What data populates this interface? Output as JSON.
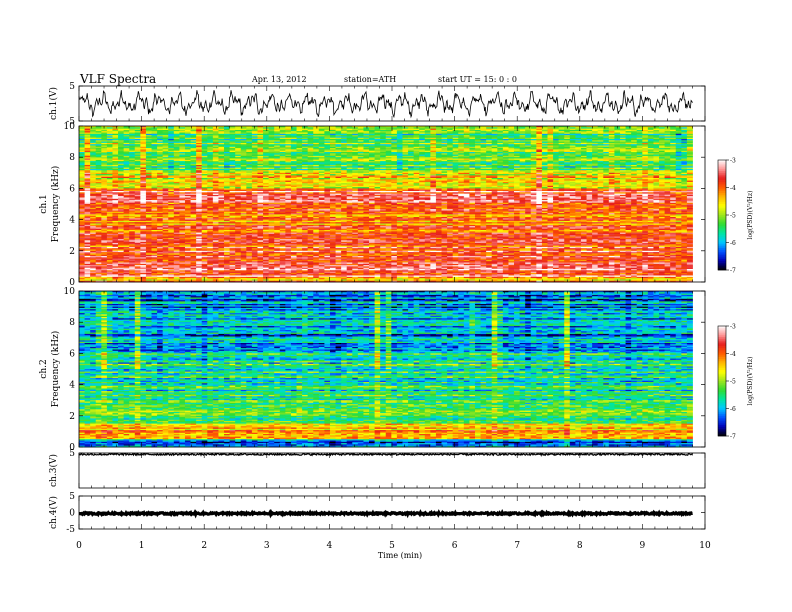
{
  "header": {
    "title": "VLF  Spectra",
    "date": "Apr. 13, 2012",
    "station": "station=ATH",
    "start": "start  UT  =    15: 0  : 0"
  },
  "colorbar": {
    "label": "log(PSD)(V²/Hz)",
    "ticks": [
      "-3",
      "-4",
      "-5",
      "-6",
      "-7"
    ],
    "colors": [
      "#000000",
      "#0000b4",
      "#0050ff",
      "#00c8ff",
      "#00e6a0",
      "#32dc32",
      "#a0e61e",
      "#ffff00",
      "#ffb400",
      "#ff5a00",
      "#e61e1e",
      "#ff9696",
      "#ffffff"
    ]
  },
  "chart_data": [
    {
      "type": "line",
      "ylabel": "ch.1(V)",
      "ylim": [
        -5,
        5
      ],
      "yticks": [
        "5",
        "-5"
      ],
      "x_range_min": [
        0,
        9.8
      ],
      "description_values": "noisy waveform roughly between -3 V and +3 V"
    },
    {
      "type": "heatmap",
      "ylabel_channel": "ch.1",
      "ylabel": "Frequency  (kHz)",
      "ylim": [
        0,
        10
      ],
      "yticks": [
        "0",
        "2",
        "4",
        "6",
        "8",
        "10"
      ],
      "x_range_min": [
        0,
        9.8
      ],
      "zlim": [
        -7,
        -3
      ],
      "bands_khz": [
        {
          "from": 0.0,
          "to": 0.3,
          "log_psd": -4.2
        },
        {
          "from": 0.3,
          "to": 1.0,
          "log_psd": -3.5
        },
        {
          "from": 1.0,
          "to": 3.0,
          "log_psd": -3.8
        },
        {
          "from": 3.0,
          "to": 5.0,
          "log_psd": -4.0
        },
        {
          "from": 5.0,
          "to": 6.0,
          "log_psd": -3.6
        },
        {
          "from": 6.0,
          "to": 7.0,
          "log_psd": -4.6
        },
        {
          "from": 7.0,
          "to": 10.0,
          "log_psd": -5.3
        }
      ]
    },
    {
      "type": "heatmap",
      "ylabel_channel": "ch.2",
      "ylabel": "Frequency  (kHz)",
      "ylim": [
        0,
        10
      ],
      "yticks": [
        "0",
        "2",
        "4",
        "6",
        "8",
        "10"
      ],
      "x_range_min": [
        0,
        9.8
      ],
      "zlim": [
        -7,
        -3
      ],
      "bands_khz": [
        {
          "from": 0.0,
          "to": 0.5,
          "log_psd": -6.2
        },
        {
          "from": 0.5,
          "to": 1.5,
          "log_psd": -4.4
        },
        {
          "from": 1.5,
          "to": 3.0,
          "log_psd": -5.3
        },
        {
          "from": 3.0,
          "to": 6.0,
          "log_psd": -5.6
        },
        {
          "from": 6.0,
          "to": 10.0,
          "log_psd": -6.1
        }
      ]
    },
    {
      "type": "line",
      "ylabel": "ch.3(V)",
      "ylim": [
        -5,
        5
      ],
      "yticks": [
        "5"
      ],
      "x_range_min": [
        0,
        9.8
      ],
      "description_values": "flat trace near +4.5 V"
    },
    {
      "type": "line",
      "ylabel": "ch.4(V)",
      "ylim": [
        -5,
        5
      ],
      "yticks": [
        "5",
        "0",
        "-5"
      ],
      "x_range_min": [
        0,
        9.8
      ],
      "description_values": "flat trace near -0.3 V"
    }
  ],
  "xaxis": {
    "label": "Time  (min)",
    "ticks": [
      "0",
      "1",
      "2",
      "3",
      "4",
      "5",
      "6",
      "7",
      "8",
      "9",
      "10"
    ],
    "range": [
      0,
      10
    ]
  }
}
